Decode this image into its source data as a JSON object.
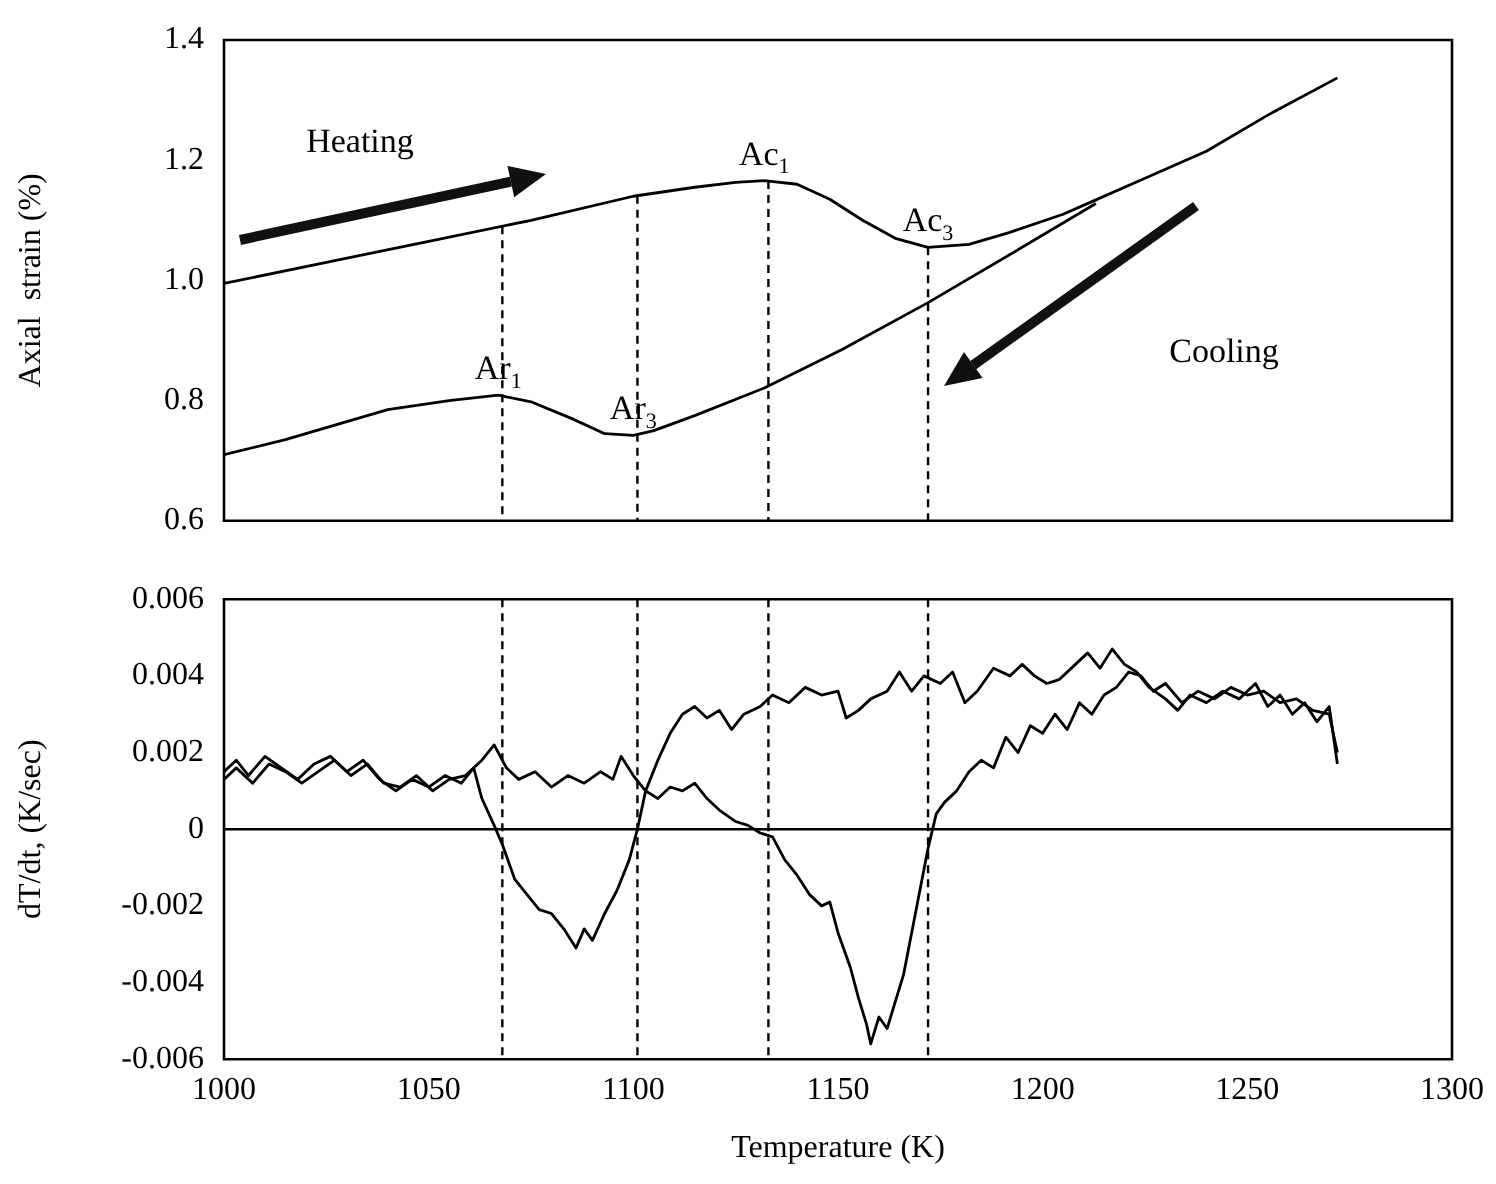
{
  "chart_data": [
    {
      "type": "line",
      "ylabel": "Axial  strain (%)",
      "xlim": [
        1000,
        1300
      ],
      "xticks": [
        1000,
        1050,
        1100,
        1150,
        1200,
        1250,
        1300
      ],
      "ylim": [
        0.6,
        1.4
      ],
      "yticks": [
        0.6,
        0.8,
        {
          "value": 1,
          "label": "1.0"
        },
        1.2,
        1.4
      ],
      "tick_labels": "y",
      "grid": false,
      "legend": false,
      "marker": "none",
      "line_style": "solid",
      "series": [
        {
          "color": "#000000",
          "x": [
            1000,
            1025,
            1050,
            1075,
            1100,
            1115,
            1125,
            1132,
            1140,
            1148,
            1156,
            1164,
            1172,
            1182,
            1192,
            1205,
            1213,
            1225,
            1240,
            1255,
            1272
          ],
          "values": [
            0.995,
            1.03,
            1.065,
            1.1,
            1.14,
            1.155,
            1.163,
            1.166,
            1.16,
            1.135,
            1.1,
            1.07,
            1.055,
            1.06,
            1.08,
            1.11,
            1.134,
            1.17,
            1.215,
            1.275,
            1.337
          ]
        },
        {
          "color": "#000000",
          "x": [
            1000,
            1015,
            1030,
            1040,
            1055,
            1067,
            1075,
            1085,
            1093,
            1100,
            1105,
            1115,
            1132,
            1151,
            1172,
            1192,
            1213
          ],
          "values": [
            0.71,
            0.735,
            0.765,
            0.785,
            0.8,
            0.809,
            0.798,
            0.77,
            0.745,
            0.742,
            0.75,
            0.775,
            0.821,
            0.885,
            0.963,
            1.043,
            1.128
          ]
        }
      ],
      "ref_lines": [
        {
          "axis": "x",
          "value": 1068,
          "line_style": "dashed"
        },
        {
          "axis": "x",
          "value": 1101,
          "line_style": "dashed"
        },
        {
          "axis": "x",
          "value": 1133,
          "line_style": "dashed"
        },
        {
          "axis": "x",
          "value": 1172,
          "line_style": "dashed"
        }
      ],
      "annotations": [
        "Heating",
        "Cooling",
        {
          "text": "Ac$_{1}$",
          "x": 1132,
          "y": 1.166
        },
        {
          "text": "Ac$_{3}$",
          "x": 1172,
          "y": 1.055
        },
        {
          "text": "Ar$_{1}$",
          "x": 1067,
          "y": 0.809
        },
        {
          "text": "Ar$_{3}$",
          "x": 1100,
          "y": 0.742
        }
      ]
    },
    {
      "type": "line",
      "xlabel": "Temperature (K)",
      "ylabel": "dT/dt, (K/sec)",
      "xlim": [
        1000,
        1300
      ],
      "xticks": [
        1000,
        1050,
        1100,
        1150,
        1200,
        1250,
        1300
      ],
      "ylim": [
        -0.006,
        0.006
      ],
      "yticks": [
        -0.006,
        -0.004,
        -0.002,
        0,
        0.002,
        0.004,
        0.006
      ],
      "grid": false,
      "legend": false,
      "marker": "none",
      "line_style": "solid",
      "series": [
        {
          "color": "#000000",
          "x": [
            1000,
            1003,
            1006,
            1010,
            1014,
            1018,
            1022,
            1026,
            1030,
            1034,
            1038,
            1042,
            1046,
            1050,
            1054,
            1058,
            1061,
            1063,
            1066,
            1068,
            1071,
            1074,
            1077,
            1080,
            1083,
            1086,
            1088,
            1090,
            1093,
            1096,
            1099,
            1101,
            1103,
            1106,
            1109,
            1112,
            1115,
            1118,
            1121,
            1124,
            1127,
            1131,
            1134,
            1138,
            1142,
            1146,
            1150,
            1152,
            1155,
            1158,
            1162,
            1165,
            1168,
            1171,
            1175,
            1178,
            1181,
            1184,
            1188,
            1192,
            1195,
            1198,
            1201,
            1204,
            1208,
            1211,
            1214,
            1217,
            1220,
            1223,
            1226,
            1230,
            1233,
            1236,
            1240,
            1244,
            1248,
            1252,
            1255,
            1258,
            1261,
            1264,
            1267,
            1270,
            1272
          ],
          "values": [
            0.0015,
            0.0018,
            0.0014,
            0.0019,
            0.0016,
            0.0013,
            0.0017,
            0.0019,
            0.0015,
            0.0018,
            0.0013,
            0.001,
            0.0013,
            0.0011,
            0.0014,
            0.0012,
            0.0016,
            0.0008,
            0.0001,
            -0.0004,
            -0.0013,
            -0.0017,
            -0.0021,
            -0.0022,
            -0.0026,
            -0.0031,
            -0.0026,
            -0.0029,
            -0.0022,
            -0.0016,
            -0.0008,
            0,
            0.001,
            0.0018,
            0.0025,
            0.003,
            0.0032,
            0.0029,
            0.0031,
            0.0026,
            0.003,
            0.0032,
            0.0035,
            0.0033,
            0.0037,
            0.0035,
            0.0036,
            0.0029,
            0.0031,
            0.0034,
            0.0036,
            0.0041,
            0.0036,
            0.004,
            0.0038,
            0.0041,
            0.0033,
            0.0036,
            0.0042,
            0.004,
            0.0043,
            0.004,
            0.0038,
            0.0039,
            0.0043,
            0.0046,
            0.0042,
            0.0047,
            0.0043,
            0.0041,
            0.0037,
            0.0034,
            0.0031,
            0.0035,
            0.0033,
            0.0036,
            0.0034,
            0.0038,
            0.0032,
            0.0035,
            0.003,
            0.0033,
            0.0028,
            0.0032,
            0.0017
          ]
        },
        {
          "color": "#000000",
          "x": [
            1000,
            1003,
            1007,
            1011,
            1015,
            1019,
            1023,
            1027,
            1031,
            1035,
            1039,
            1043,
            1047,
            1051,
            1055,
            1059,
            1063,
            1066,
            1069,
            1072,
            1076,
            1080,
            1084,
            1088,
            1092,
            1095,
            1097,
            1100,
            1103,
            1106,
            1109,
            1112,
            1115,
            1118,
            1121,
            1125,
            1128,
            1131,
            1134,
            1137,
            1140,
            1143,
            1146,
            1148,
            1150,
            1153,
            1155,
            1157,
            1158,
            1160,
            1162,
            1164,
            1166,
            1168,
            1170,
            1172,
            1174,
            1176,
            1179,
            1182,
            1185,
            1188,
            1191,
            1194,
            1197,
            1200,
            1203,
            1206,
            1209,
            1212,
            1215,
            1218,
            1221,
            1224,
            1227,
            1230,
            1234,
            1238,
            1242,
            1246,
            1250,
            1254,
            1258,
            1262,
            1266,
            1270,
            1272
          ],
          "values": [
            0.0013,
            0.0016,
            0.0012,
            0.0017,
            0.0015,
            0.0012,
            0.0015,
            0.0018,
            0.0014,
            0.0017,
            0.0012,
            0.0011,
            0.0014,
            0.001,
            0.0013,
            0.0014,
            0.0018,
            0.0022,
            0.0016,
            0.0013,
            0.0015,
            0.0011,
            0.0014,
            0.0012,
            0.0015,
            0.0013,
            0.0019,
            0.0014,
            0.001,
            0.0008,
            0.0011,
            0.001,
            0.0012,
            0.0008,
            0.0005,
            0.0002,
            0.0001,
            -0.0001,
            -0.0002,
            -0.0008,
            -0.0012,
            -0.0017,
            -0.002,
            -0.0019,
            -0.0027,
            -0.0036,
            -0.0044,
            -0.0051,
            -0.0056,
            -0.0049,
            -0.0052,
            -0.0045,
            -0.0038,
            -0.0027,
            -0.0016,
            -0.0005,
            0.0004,
            0.0007,
            0.001,
            0.0015,
            0.0018,
            0.0016,
            0.0024,
            0.002,
            0.0027,
            0.0025,
            0.003,
            0.0026,
            0.0033,
            0.003,
            0.0035,
            0.0037,
            0.0041,
            0.004,
            0.0036,
            0.0038,
            0.0033,
            0.0036,
            0.0034,
            0.0037,
            0.0035,
            0.0036,
            0.0033,
            0.0034,
            0.0031,
            0.003,
            0.002
          ]
        }
      ],
      "ref_lines": [
        {
          "axis": "y",
          "value": 0,
          "line_style": "solid"
        },
        {
          "axis": "x",
          "value": 1068,
          "line_style": "dashed"
        },
        {
          "axis": "x",
          "value": 1101,
          "line_style": "dashed"
        },
        {
          "axis": "x",
          "value": 1133,
          "line_style": "dashed"
        },
        {
          "axis": "x",
          "value": 1172,
          "line_style": "dashed"
        }
      ]
    }
  ]
}
